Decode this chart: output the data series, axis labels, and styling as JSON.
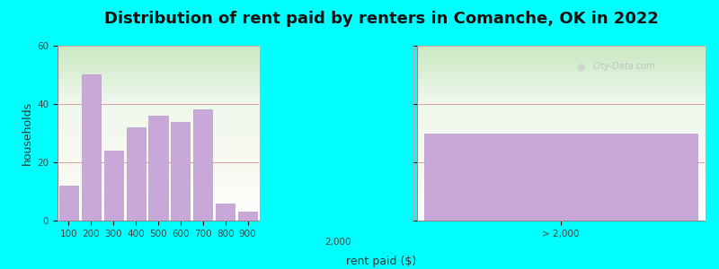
{
  "title": "Distribution of rent paid by renters in Comanche, OK in 2022",
  "xlabel": "rent paid ($)",
  "ylabel": "households",
  "background_color": "#00FFFF",
  "bar_color": "#c8a8d8",
  "bar_edgecolor": "#b898c8",
  "categories": [
    "100",
    "200",
    "300",
    "400",
    "500",
    "600",
    "700",
    "800",
    "900"
  ],
  "values": [
    12,
    50,
    24,
    32,
    36,
    34,
    38,
    6,
    3
  ],
  "gt2000_value": 30,
  "ylim": [
    0,
    60
  ],
  "yticks": [
    0,
    20,
    40,
    60
  ],
  "grid_color": "#d8a0a0",
  "title_fontsize": 13,
  "axis_label_fontsize": 9,
  "tick_fontsize": 7.5
}
